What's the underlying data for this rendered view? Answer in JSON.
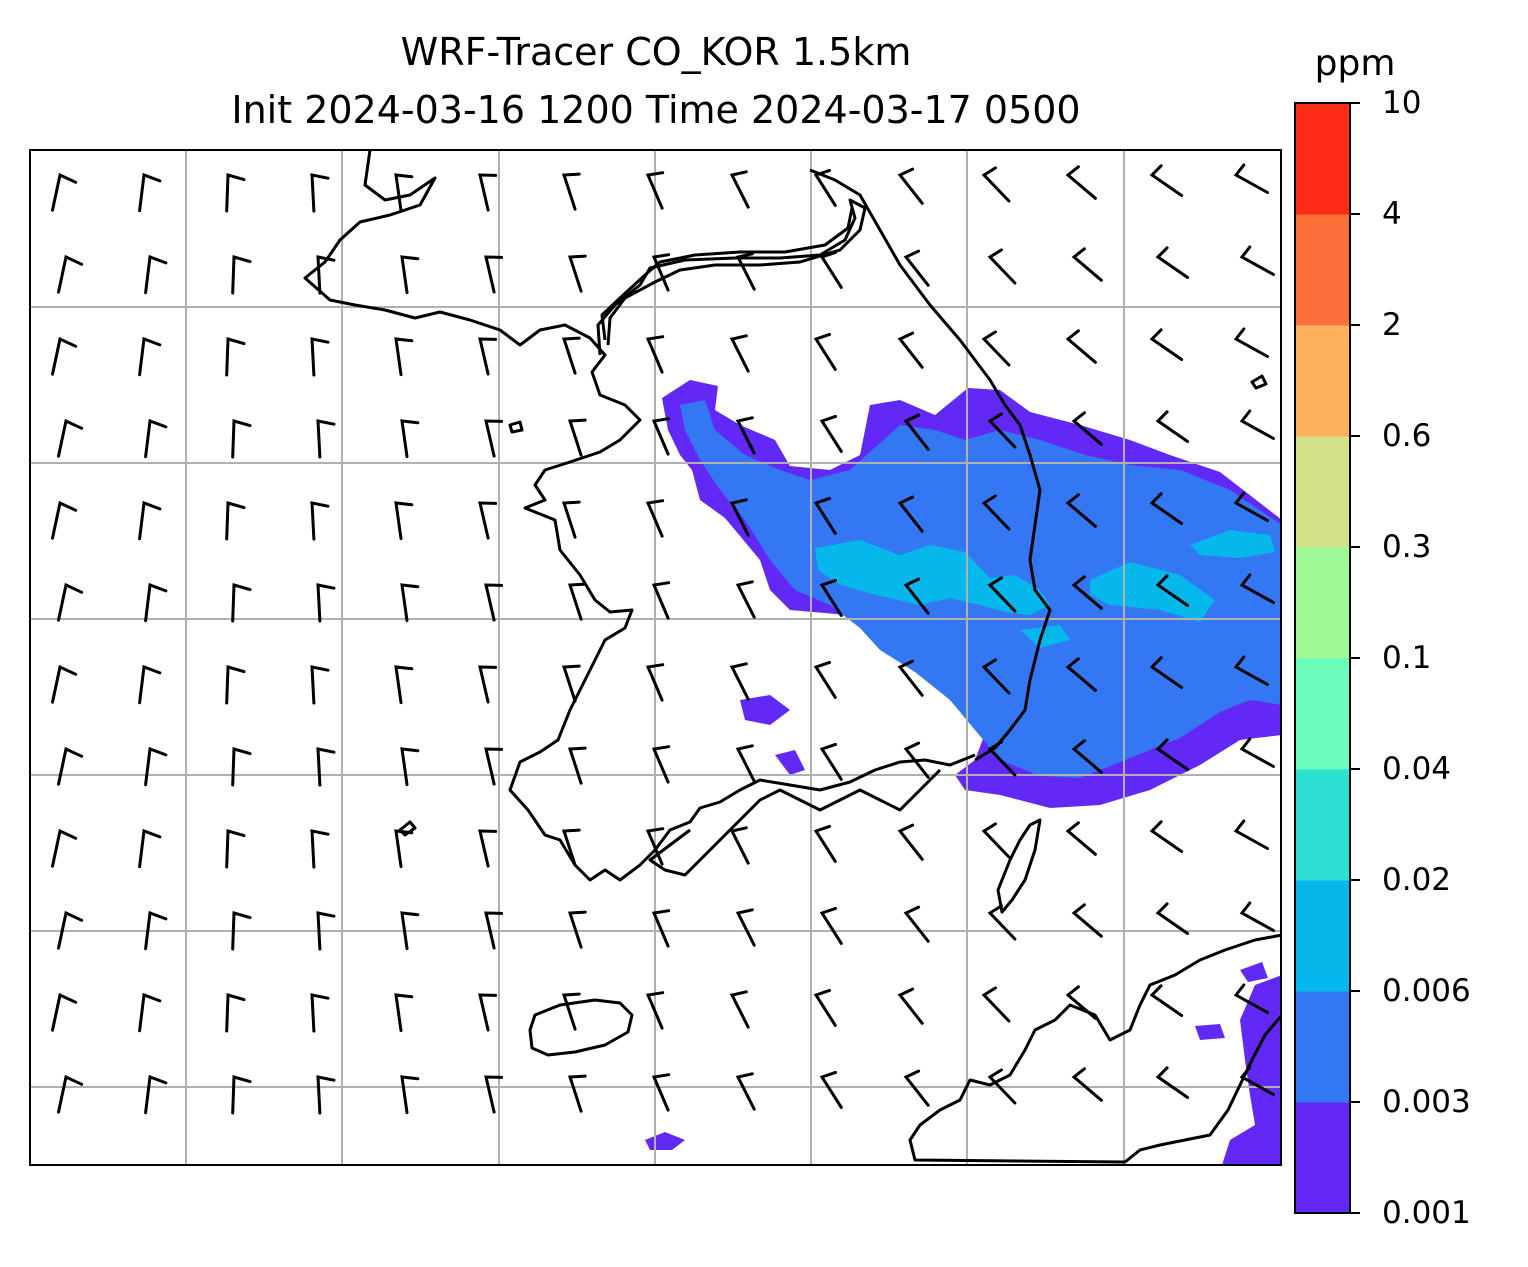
{
  "title": {
    "line1": "WRF-Tracer CO_KOR 1.5km",
    "line2": "Init 2024-03-16 1200 Time 2024-03-17 0500"
  },
  "colorbar": {
    "unit": "ppm",
    "levels": [
      "0.001",
      "0.003",
      "0.006",
      "0.02",
      "0.04",
      "0.1",
      "0.3",
      "0.6",
      "2",
      "4",
      "10"
    ],
    "colors": [
      "#6228f5",
      "#3477f3",
      "#05b7ea",
      "#2ee0d4",
      "#6cfdbd",
      "#9ffb98",
      "#d3e289",
      "#fdb15f",
      "#fe703a",
      "#fe2c17"
    ]
  },
  "map": {
    "gridline_color": "#b0b0b0",
    "field_colors": {
      "lowest": "#6228f5",
      "low": "#3477f3",
      "mid": "#05b7ea"
    }
  }
}
